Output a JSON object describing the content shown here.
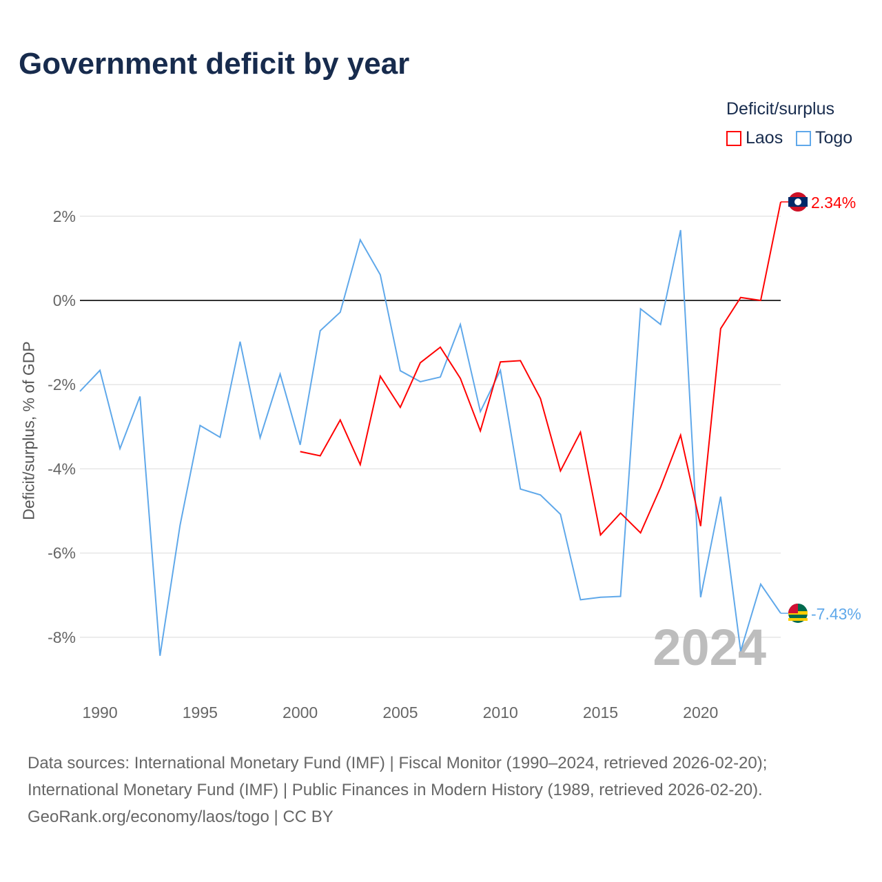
{
  "chart_data": {
    "type": "line",
    "title": "Government deficit by year",
    "ylabel": "Deficit/surplus, % of GDP",
    "xlabel": "",
    "xlim": [
      1989,
      2024
    ],
    "ylim": [
      -9.3,
      3.5
    ],
    "xticks": [
      1990,
      1995,
      2000,
      2005,
      2010,
      2015,
      2020
    ],
    "yticks": [
      {
        "v": 2,
        "label": "2%"
      },
      {
        "v": 0,
        "label": "0%"
      },
      {
        "v": -2,
        "label": "-2%"
      },
      {
        "v": -4,
        "label": "-4%"
      },
      {
        "v": -6,
        "label": "-6%"
      },
      {
        "v": -8,
        "label": "-8%"
      }
    ],
    "legend_title": "Deficit/surplus",
    "legend_position": "top-right",
    "year_watermark": "2024",
    "series": [
      {
        "name": "Laos",
        "color": "#ff0000",
        "end_label": "2.34%",
        "x": [
          2000,
          2001,
          2002,
          2003,
          2004,
          2005,
          2006,
          2007,
          2008,
          2009,
          2010,
          2011,
          2012,
          2013,
          2014,
          2015,
          2016,
          2017,
          2018,
          2019,
          2020,
          2021,
          2022,
          2023,
          2024
        ],
        "values": [
          -3.59,
          -3.69,
          -2.84,
          -3.9,
          -1.8,
          -2.54,
          -1.48,
          -1.11,
          -1.85,
          -3.1,
          -1.46,
          -1.43,
          -2.33,
          -4.05,
          -3.13,
          -5.57,
          -5.05,
          -5.52,
          -4.44,
          -3.2,
          -5.36,
          -0.67,
          0.07,
          0.0,
          2.34
        ]
      },
      {
        "name": "Togo",
        "color": "#5fa8ea",
        "end_label": "-7.43%",
        "x": [
          1989,
          1990,
          1991,
          1992,
          1993,
          1994,
          1995,
          1996,
          1997,
          1998,
          1999,
          2000,
          2001,
          2002,
          2003,
          2004,
          2005,
          2006,
          2007,
          2008,
          2009,
          2010,
          2011,
          2012,
          2013,
          2014,
          2015,
          2016,
          2017,
          2018,
          2019,
          2020,
          2021,
          2022,
          2023,
          2024
        ],
        "values": [
          -2.16,
          -1.66,
          -3.52,
          -2.28,
          -8.44,
          -5.34,
          -2.97,
          -3.25,
          -0.98,
          -3.26,
          -1.75,
          -3.43,
          -0.72,
          -0.28,
          1.44,
          0.61,
          -1.67,
          -1.93,
          -1.82,
          -0.57,
          -2.64,
          -1.66,
          -4.48,
          -4.62,
          -5.08,
          -7.11,
          -7.05,
          -7.03,
          -0.2,
          -0.57,
          1.67,
          -7.05,
          -4.66,
          -8.33,
          -6.74,
          -7.43
        ]
      }
    ]
  },
  "footer": {
    "line1": "Data sources: International Monetary Fund (IMF) | Fiscal Monitor (1990–2024, retrieved 2026-02-20);",
    "line2": "International Monetary Fund (IMF) | Public Finances in Modern History (1989, retrieved 2026-02-20).",
    "line3": "GeoRank.org/economy/laos/togo | CC BY"
  }
}
